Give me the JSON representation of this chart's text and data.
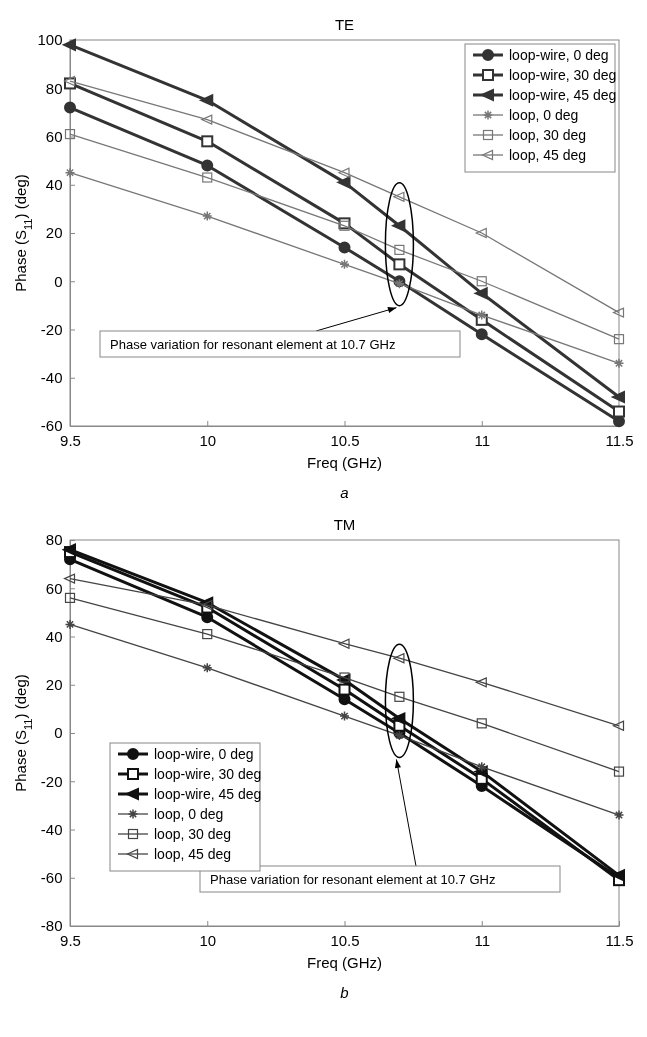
{
  "chart_data": [
    {
      "type": "line",
      "title": "TE",
      "xlabel": "Freq (GHz)",
      "ylabel": "Phase (S$_{11}$) (deg)",
      "x": [
        9.5,
        10,
        10.5,
        10.7,
        11,
        11.5
      ],
      "xlim": [
        9.5,
        11.5
      ],
      "xticks": [
        9.5,
        10,
        10.5,
        11,
        11.5
      ],
      "ylim": [
        -60,
        100
      ],
      "yticks": [
        -60,
        -40,
        -20,
        0,
        20,
        40,
        60,
        80,
        100
      ],
      "legend": "top right",
      "line_style": "solid",
      "annotations": [
        "Phase variation for resonant element at 10.7 GHz",
        "a"
      ],
      "series": [
        {
          "name": "loop-wire, 0 deg",
          "color": "#333333",
          "marker": "circle",
          "values": [
            72,
            48,
            14,
            0,
            -22,
            -58
          ]
        },
        {
          "name": "loop-wire, 30 deg",
          "color": "#333333",
          "marker": "square",
          "values": [
            82,
            58,
            24,
            7,
            -16,
            -54
          ]
        },
        {
          "name": "loop-wire, 45 deg",
          "color": "#333333",
          "marker": "triangle",
          "values": [
            98,
            75,
            41,
            23,
            -5,
            -48
          ]
        },
        {
          "name": "loop, 0 deg",
          "color": "#777777",
          "marker": "cross",
          "values": [
            45,
            27,
            7,
            -1,
            -14,
            -34
          ]
        },
        {
          "name": "loop, 30 deg",
          "color": "#777777",
          "marker": "square",
          "values": [
            61,
            43,
            23,
            13,
            0,
            -24
          ]
        },
        {
          "name": "loop, 45 deg",
          "color": "#777777",
          "marker": "triangle",
          "values": [
            83,
            67,
            45,
            35,
            20,
            -13
          ]
        }
      ]
    },
    {
      "type": "line",
      "title": "TM",
      "xlabel": "Freq (GHz)",
      "ylabel": "Phase (S$_{11}$) (deg)",
      "x": [
        9.5,
        10,
        10.5,
        10.7,
        11,
        11.5
      ],
      "xlim": [
        9.5,
        11.5
      ],
      "xticks": [
        9.5,
        10,
        10.5,
        11,
        11.5
      ],
      "ylim": [
        -80,
        80
      ],
      "yticks": [
        -80,
        -60,
        -40,
        -20,
        0,
        20,
        40,
        60,
        80
      ],
      "legend": "left",
      "line_style": "solid",
      "annotations": [
        "Phase variation for resonant element at 10.7 GHz",
        "b"
      ],
      "series": [
        {
          "name": "loop-wire, 0 deg",
          "color": "#111111",
          "marker": "circle",
          "values": [
            72,
            48,
            14,
            0,
            -22,
            -60
          ]
        },
        {
          "name": "loop-wire, 30 deg",
          "color": "#111111",
          "marker": "square",
          "values": [
            75,
            52,
            18,
            3,
            -19,
            -61
          ]
        },
        {
          "name": "loop-wire, 45 deg",
          "color": "#111111",
          "marker": "triangle",
          "values": [
            76,
            54,
            22,
            6,
            -16,
            -59
          ]
        },
        {
          "name": "loop, 0 deg",
          "color": "#444444",
          "marker": "cross",
          "values": [
            45,
            27,
            7,
            -1,
            -14,
            -34
          ]
        },
        {
          "name": "loop, 30 deg",
          "color": "#444444",
          "marker": "square",
          "values": [
            56,
            41,
            23,
            15,
            4,
            -16
          ]
        },
        {
          "name": "loop, 45 deg",
          "color": "#444444",
          "marker": "triangle",
          "values": [
            64,
            53,
            37,
            31,
            21,
            3
          ]
        }
      ]
    }
  ]
}
